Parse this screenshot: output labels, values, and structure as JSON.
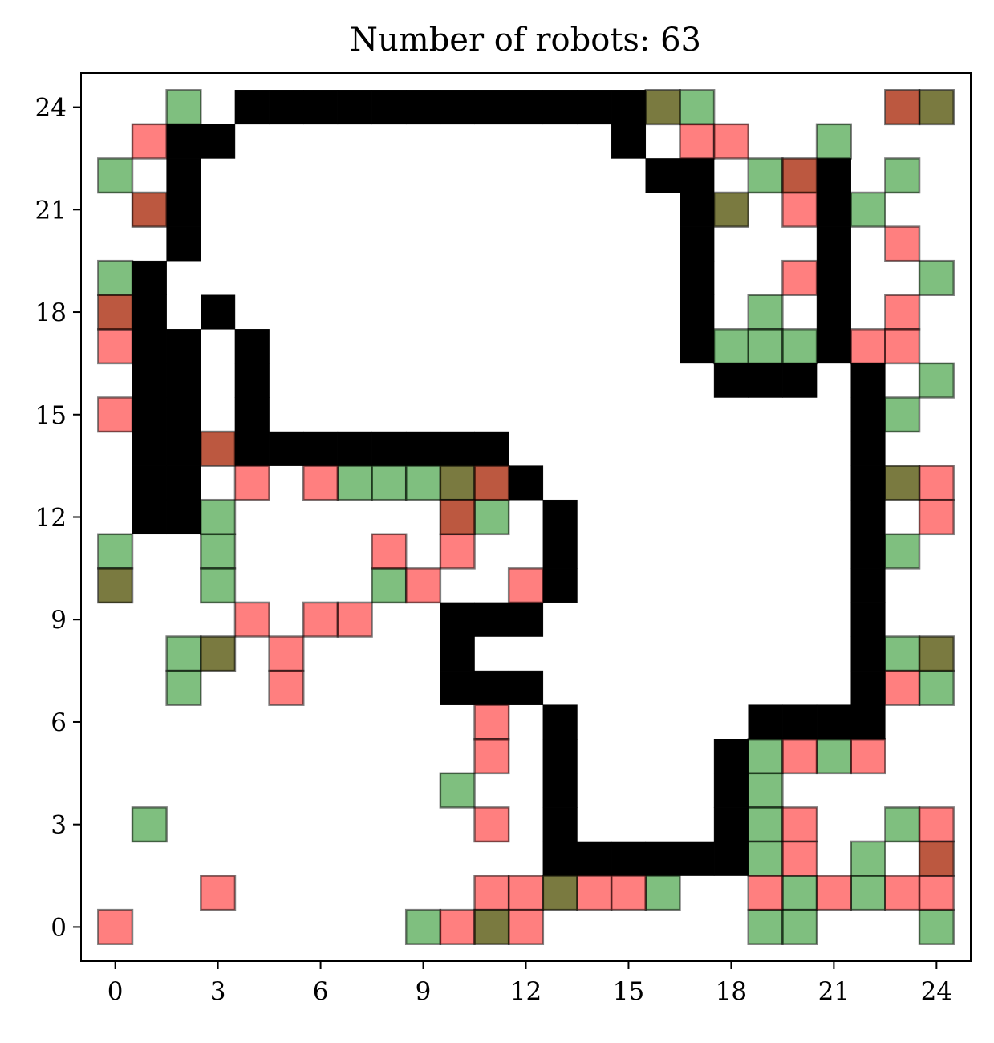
{
  "chart_data": {
    "type": "heatmap",
    "title": "Number of robots: 63",
    "xlabel": "",
    "ylabel": "",
    "xlim": [
      -1,
      25
    ],
    "ylim": [
      -1,
      25
    ],
    "xticks": [
      "0",
      "3",
      "6",
      "9",
      "12",
      "15",
      "18",
      "21",
      "24"
    ],
    "yticks": [
      "0",
      "3",
      "6",
      "9",
      "12",
      "15",
      "18",
      "21",
      "24"
    ],
    "grid": false,
    "legend": "none",
    "colors": {
      "wall": "#000000",
      "green": "#008000",
      "red": "#ff0000",
      "dark_green": "#4d4d00",
      "dark_red": "#a52000"
    },
    "series": [
      {
        "kind": "wall",
        "cells": [
          [
            4,
            24
          ],
          [
            5,
            24
          ],
          [
            6,
            24
          ],
          [
            7,
            24
          ],
          [
            8,
            24
          ],
          [
            9,
            24
          ],
          [
            10,
            24
          ],
          [
            11,
            24
          ],
          [
            12,
            24
          ],
          [
            13,
            24
          ],
          [
            14,
            24
          ],
          [
            15,
            24
          ],
          [
            2,
            23
          ],
          [
            3,
            23
          ],
          [
            15,
            23
          ],
          [
            2,
            22
          ],
          [
            16,
            22
          ],
          [
            17,
            22
          ],
          [
            21,
            22
          ],
          [
            2,
            21
          ],
          [
            17,
            21
          ],
          [
            21,
            21
          ],
          [
            2,
            20
          ],
          [
            17,
            20
          ],
          [
            21,
            20
          ],
          [
            1,
            19
          ],
          [
            17,
            19
          ],
          [
            21,
            19
          ],
          [
            1,
            18
          ],
          [
            3,
            18
          ],
          [
            17,
            18
          ],
          [
            21,
            18
          ],
          [
            1,
            17
          ],
          [
            2,
            17
          ],
          [
            4,
            17
          ],
          [
            17,
            17
          ],
          [
            21,
            17
          ],
          [
            1,
            16
          ],
          [
            2,
            16
          ],
          [
            4,
            16
          ],
          [
            18,
            16
          ],
          [
            19,
            16
          ],
          [
            20,
            16
          ],
          [
            22,
            16
          ],
          [
            1,
            15
          ],
          [
            2,
            15
          ],
          [
            4,
            15
          ],
          [
            22,
            15
          ],
          [
            1,
            14
          ],
          [
            2,
            14
          ],
          [
            4,
            14
          ],
          [
            5,
            14
          ],
          [
            6,
            14
          ],
          [
            7,
            14
          ],
          [
            8,
            14
          ],
          [
            9,
            14
          ],
          [
            10,
            14
          ],
          [
            11,
            14
          ],
          [
            22,
            14
          ],
          [
            1,
            13
          ],
          [
            2,
            13
          ],
          [
            12,
            13
          ],
          [
            22,
            13
          ],
          [
            1,
            12
          ],
          [
            2,
            12
          ],
          [
            13,
            12
          ],
          [
            22,
            12
          ],
          [
            13,
            11
          ],
          [
            22,
            11
          ],
          [
            13,
            10
          ],
          [
            22,
            10
          ],
          [
            10,
            9
          ],
          [
            11,
            9
          ],
          [
            12,
            9
          ],
          [
            22,
            9
          ],
          [
            10,
            8
          ],
          [
            22,
            8
          ],
          [
            10,
            7
          ],
          [
            11,
            7
          ],
          [
            12,
            7
          ],
          [
            22,
            7
          ],
          [
            13,
            6
          ],
          [
            19,
            6
          ],
          [
            20,
            6
          ],
          [
            21,
            6
          ],
          [
            22,
            6
          ],
          [
            13,
            5
          ],
          [
            18,
            5
          ],
          [
            13,
            4
          ],
          [
            18,
            4
          ],
          [
            13,
            3
          ],
          [
            18,
            3
          ],
          [
            13,
            2
          ],
          [
            14,
            2
          ],
          [
            15,
            2
          ],
          [
            16,
            2
          ],
          [
            17,
            2
          ],
          [
            18,
            2
          ]
        ]
      },
      {
        "kind": "green",
        "cells": [
          [
            2,
            24
          ],
          [
            17,
            24
          ],
          [
            21,
            23
          ],
          [
            0,
            22
          ],
          [
            19,
            22
          ],
          [
            23,
            22
          ],
          [
            22,
            21
          ],
          [
            0,
            19
          ],
          [
            24,
            19
          ],
          [
            19,
            18
          ],
          [
            19,
            17
          ],
          [
            20,
            17
          ],
          [
            18,
            17
          ],
          [
            24,
            16
          ],
          [
            23,
            15
          ],
          [
            7,
            13
          ],
          [
            8,
            13
          ],
          [
            9,
            13
          ],
          [
            3,
            12
          ],
          [
            11,
            12
          ],
          [
            0,
            11
          ],
          [
            3,
            11
          ],
          [
            23,
            11
          ],
          [
            3,
            10
          ],
          [
            8,
            10
          ],
          [
            2,
            8
          ],
          [
            23,
            8
          ],
          [
            2,
            7
          ],
          [
            24,
            7
          ],
          [
            19,
            5
          ],
          [
            21,
            5
          ],
          [
            10,
            4
          ],
          [
            19,
            4
          ],
          [
            1,
            3
          ],
          [
            19,
            3
          ],
          [
            23,
            3
          ],
          [
            19,
            2
          ],
          [
            22,
            2
          ],
          [
            16,
            1
          ],
          [
            20,
            1
          ],
          [
            22,
            1
          ],
          [
            9,
            0
          ],
          [
            19,
            0
          ],
          [
            20,
            0
          ],
          [
            24,
            0
          ]
        ]
      },
      {
        "kind": "red",
        "cells": [
          [
            1,
            23
          ],
          [
            17,
            23
          ],
          [
            18,
            23
          ],
          [
            20,
            21
          ],
          [
            23,
            20
          ],
          [
            20,
            19
          ],
          [
            23,
            18
          ],
          [
            0,
            17
          ],
          [
            22,
            17
          ],
          [
            23,
            17
          ],
          [
            0,
            15
          ],
          [
            4,
            13
          ],
          [
            6,
            13
          ],
          [
            24,
            13
          ],
          [
            24,
            12
          ],
          [
            8,
            11
          ],
          [
            10,
            11
          ],
          [
            9,
            10
          ],
          [
            12,
            10
          ],
          [
            4,
            9
          ],
          [
            6,
            9
          ],
          [
            7,
            9
          ],
          [
            5,
            8
          ],
          [
            5,
            7
          ],
          [
            23,
            7
          ],
          [
            11,
            6
          ],
          [
            11,
            5
          ],
          [
            20,
            5
          ],
          [
            22,
            5
          ],
          [
            11,
            3
          ],
          [
            20,
            3
          ],
          [
            24,
            3
          ],
          [
            20,
            2
          ],
          [
            3,
            1
          ],
          [
            11,
            1
          ],
          [
            12,
            1
          ],
          [
            14,
            1
          ],
          [
            15,
            1
          ],
          [
            19,
            1
          ],
          [
            21,
            1
          ],
          [
            23,
            1
          ],
          [
            24,
            1
          ],
          [
            0,
            0
          ],
          [
            10,
            0
          ],
          [
            12,
            0
          ]
        ]
      },
      {
        "kind": "dark_green",
        "cells": [
          [
            16,
            24
          ],
          [
            24,
            24
          ],
          [
            18,
            21
          ],
          [
            10,
            13
          ],
          [
            23,
            13
          ],
          [
            0,
            10
          ],
          [
            3,
            8
          ],
          [
            24,
            8
          ],
          [
            13,
            1
          ],
          [
            11,
            0
          ]
        ]
      },
      {
        "kind": "dark_red",
        "cells": [
          [
            23,
            24
          ],
          [
            20,
            22
          ],
          [
            1,
            21
          ],
          [
            0,
            18
          ],
          [
            3,
            14
          ],
          [
            11,
            13
          ],
          [
            10,
            12
          ],
          [
            24,
            2
          ]
        ]
      }
    ]
  }
}
